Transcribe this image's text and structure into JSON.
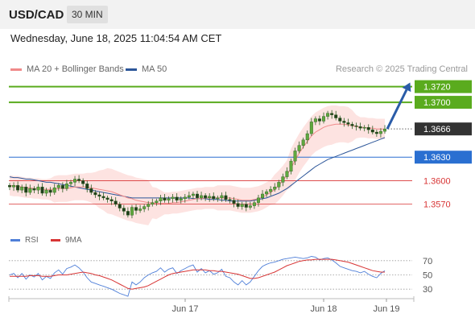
{
  "header": {
    "symbol": "USD/CAD",
    "timeframe": "30 MIN"
  },
  "datetime": "Wednesday, June 18, 2025 11:04:54 AM CET",
  "legend": [
    {
      "label": "MA 20 + Bollinger Bands",
      "color": "#f08a8a"
    },
    {
      "label": "MA 50",
      "color": "#2c5699"
    }
  ],
  "credit": "Research © 2025 Trading Central",
  "levels": [
    {
      "label": "1.3720",
      "value": 1.372,
      "color": "#5aab1e",
      "style": "filled"
    },
    {
      "label": "1.3700",
      "value": 1.37,
      "color": "#5aab1e",
      "style": "filled"
    },
    {
      "label": "1.3666",
      "value": 1.3666,
      "color": "#333333",
      "style": "current"
    },
    {
      "label": "1.3630",
      "value": 1.363,
      "color": "#2a6fd1",
      "style": "filled"
    },
    {
      "label": "1.3600",
      "value": 1.36,
      "color": "#d83535",
      "style": "text"
    },
    {
      "label": "1.3570",
      "value": 1.357,
      "color": "#d83535",
      "style": "text"
    }
  ],
  "rsi_legend": [
    {
      "label": "RSI",
      "color": "#4f7fd8"
    },
    {
      "label": "9MA",
      "color": "#d83535"
    }
  ],
  "chart_data": {
    "type": "candlestick",
    "price_ylim": [
      1.3545,
      1.3735
    ],
    "rsi_ylim": [
      20,
      80
    ],
    "rsi_levels": [
      30,
      50,
      70
    ],
    "x_ticks": [
      "Jun 17",
      "Jun 18",
      "Jun 19"
    ],
    "closes": [
      1.3592,
      1.3594,
      1.3588,
      1.3592,
      1.3585,
      1.359,
      1.3588,
      1.3592,
      1.3584,
      1.3588,
      1.3585,
      1.3591,
      1.3594,
      1.359,
      1.3596,
      1.3598,
      1.3602,
      1.36,
      1.3596,
      1.359,
      1.3585,
      1.3582,
      1.358,
      1.3578,
      1.3576,
      1.3574,
      1.357,
      1.3565,
      1.3561,
      1.3556,
      1.3566,
      1.3562,
      1.3564,
      1.3567,
      1.357,
      1.3572,
      1.3574,
      1.3578,
      1.3575,
      1.3577,
      1.3579,
      1.3575,
      1.3577,
      1.3579,
      1.3581,
      1.3583,
      1.3578,
      1.3581,
      1.3578,
      1.358,
      1.3577,
      1.3578,
      1.3581,
      1.3576,
      1.3575,
      1.3571,
      1.3567,
      1.357,
      1.3566,
      1.3568,
      1.3572,
      1.3578,
      1.3583,
      1.3586,
      1.3589,
      1.3592,
      1.3598,
      1.3605,
      1.3612,
      1.3625,
      1.3638,
      1.3645,
      1.3652,
      1.366,
      1.3675,
      1.3679,
      1.3676,
      1.3682,
      1.3686,
      1.3684,
      1.368,
      1.3676,
      1.3674,
      1.3672,
      1.367,
      1.3669,
      1.3667,
      1.3668,
      1.3665,
      1.3662,
      1.366,
      1.3663,
      1.3666
    ],
    "ma20": [
      1.3594,
      1.3593,
      1.3593,
      1.3592,
      1.3591,
      1.3591,
      1.359,
      1.359,
      1.3589,
      1.3589,
      1.3589,
      1.3589,
      1.359,
      1.359,
      1.359,
      1.3591,
      1.3592,
      1.3592,
      1.3592,
      1.3592,
      1.3591,
      1.359,
      1.3589,
      1.3588,
      1.3587,
      1.3586,
      1.3584,
      1.3582,
      1.358,
      1.3578,
      1.3577,
      1.3575,
      1.3574,
      1.3573,
      1.3572,
      1.3572,
      1.3571,
      1.3571,
      1.3571,
      1.3571,
      1.3572,
      1.3572,
      1.3573,
      1.3574,
      1.3575,
      1.3576,
      1.3577,
      1.3577,
      1.3578,
      1.3578,
      1.3578,
      1.3578,
      1.3578,
      1.3578,
      1.3578,
      1.3577,
      1.3576,
      1.3575,
      1.3575,
      1.3575,
      1.3576,
      1.3577,
      1.3579,
      1.3582,
      1.3585,
      1.3589,
      1.3594,
      1.36,
      1.3607,
      1.3616,
      1.3626,
      1.3635,
      1.3643,
      1.365,
      1.3657,
      1.3662,
      1.3665,
      1.3668,
      1.367,
      1.3671,
      1.3672,
      1.3672,
      1.3672,
      1.3671,
      1.367,
      1.3669,
      1.3668,
      1.3668,
      1.3667,
      1.3667,
      1.3666,
      1.3666,
      1.3666
    ],
    "ma50": [
      1.3605,
      1.3604,
      1.3604,
      1.3603,
      1.3602,
      1.3602,
      1.3601,
      1.36,
      1.3599,
      1.3598,
      1.3598,
      1.3597,
      1.3596,
      1.3595,
      1.3594,
      1.3593,
      1.3592,
      1.3591,
      1.359,
      1.3589,
      1.3588,
      1.3587,
      1.3586,
      1.3585,
      1.3584,
      1.3583,
      1.3582,
      1.3581,
      1.358,
      1.3579,
      1.3578,
      1.3578,
      1.3578,
      1.3578,
      1.3578,
      1.3578,
      1.3578,
      1.3578,
      1.3578,
      1.3578,
      1.3578,
      1.3578,
      1.3578,
      1.3578,
      1.3578,
      1.3577,
      1.3577,
      1.3577,
      1.3577,
      1.3576,
      1.3576,
      1.3576,
      1.3575,
      1.3575,
      1.3574,
      1.3574,
      1.3574,
      1.3574,
      1.3574,
      1.3574,
      1.3575,
      1.3576,
      1.3577,
      1.3578,
      1.358,
      1.3582,
      1.3584,
      1.3587,
      1.359,
      1.3594,
      1.3598,
      1.3602,
      1.3606,
      1.361,
      1.3614,
      1.3618,
      1.3621,
      1.3624,
      1.3627,
      1.3629,
      1.3631,
      1.3633,
      1.3635,
      1.3637,
      1.3639,
      1.3641,
      1.3643,
      1.3645,
      1.3647,
      1.3649,
      1.3651,
      1.3653,
      1.3655
    ],
    "rsi": [
      50,
      52,
      46,
      52,
      44,
      50,
      47,
      52,
      43,
      48,
      45,
      53,
      57,
      51,
      59,
      61,
      64,
      60,
      54,
      46,
      40,
      38,
      36,
      34,
      32,
      30,
      27,
      24,
      22,
      20,
      40,
      36,
      40,
      46,
      50,
      53,
      55,
      60,
      54,
      58,
      60,
      52,
      56,
      59,
      62,
      64,
      54,
      59,
      53,
      56,
      51,
      53,
      58,
      48,
      46,
      40,
      36,
      42,
      36,
      40,
      48,
      56,
      62,
      65,
      67,
      68,
      70,
      72,
      73,
      74,
      75,
      74,
      73,
      74,
      76,
      75,
      71,
      73,
      74,
      71,
      67,
      62,
      60,
      58,
      56,
      55,
      53,
      55,
      51,
      48,
      46,
      52,
      56
    ],
    "rsi_ma9": [
      48,
      48,
      48,
      48,
      48,
      49,
      49,
      49,
      48,
      48,
      48,
      49,
      50,
      50,
      50,
      51,
      52,
      53,
      54,
      53,
      52,
      50,
      49,
      47,
      45,
      43,
      40,
      37,
      34,
      31,
      30,
      31,
      32,
      33,
      35,
      38,
      41,
      44,
      47,
      50,
      52,
      53,
      54,
      55,
      56,
      57,
      57,
      57,
      57,
      56,
      56,
      55,
      55,
      54,
      53,
      52,
      51,
      49,
      47,
      45,
      45,
      46,
      48,
      50,
      52,
      54,
      57,
      60,
      63,
      65,
      67,
      69,
      70,
      71,
      71,
      72,
      72,
      72,
      72,
      72,
      71,
      70,
      69,
      68,
      66,
      64,
      62,
      60,
      58,
      56,
      55,
      54,
      54
    ],
    "forecast_arrow": {
      "from_value": 1.3666,
      "to_value": 1.3716
    }
  }
}
